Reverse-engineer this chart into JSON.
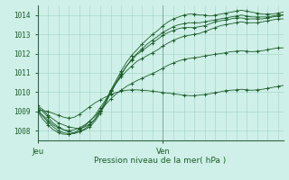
{
  "title": "",
  "xlabel": "Pression niveau de la mer( hPa )",
  "ylabel": "",
  "background_color": "#cff0e8",
  "grid_color": "#a8d8cc",
  "line_color": "#1a5c28",
  "ylim": [
    1007.5,
    1014.5
  ],
  "xlim": [
    0,
    47
  ],
  "xtick_positions": [
    0,
    24
  ],
  "xtick_labels": [
    "Jeu",
    "Ven"
  ],
  "ytick_positions": [
    1008,
    1009,
    1010,
    1011,
    1012,
    1013,
    1014
  ],
  "vline_x": 24,
  "series": [
    [
      1009.3,
      1009.1,
      1008.8,
      1008.6,
      1008.4,
      1008.3,
      1008.2,
      1008.15,
      1008.1,
      1008.2,
      1008.35,
      1008.6,
      1009.0,
      1009.5,
      1010.1,
      1010.6,
      1011.1,
      1011.55,
      1011.9,
      1012.2,
      1012.5,
      1012.75,
      1013.0,
      1013.2,
      1013.45,
      1013.65,
      1013.8,
      1013.9,
      1014.0,
      1014.05,
      1014.05,
      1014.0,
      1014.0,
      1013.95,
      1014.0,
      1014.05,
      1014.1,
      1014.15,
      1014.2,
      1014.25,
      1014.2,
      1014.15,
      1014.1,
      1014.05,
      1014.05,
      1014.05,
      1014.1,
      1014.15
    ],
    [
      1009.2,
      1009.0,
      1008.7,
      1008.4,
      1008.2,
      1008.05,
      1007.95,
      1007.9,
      1007.95,
      1008.05,
      1008.2,
      1008.5,
      1008.9,
      1009.4,
      1009.95,
      1010.45,
      1010.9,
      1011.35,
      1011.7,
      1012.0,
      1012.25,
      1012.5,
      1012.7,
      1012.9,
      1013.1,
      1013.25,
      1013.4,
      1013.5,
      1013.55,
      1013.6,
      1013.6,
      1013.6,
      1013.65,
      1013.7,
      1013.75,
      1013.8,
      1013.85,
      1013.9,
      1013.95,
      1014.0,
      1013.95,
      1013.9,
      1013.9,
      1013.9,
      1013.9,
      1013.95,
      1014.0,
      1014.0
    ],
    [
      1009.05,
      1008.75,
      1008.45,
      1008.2,
      1008.0,
      1007.9,
      1007.85,
      1007.85,
      1007.95,
      1008.1,
      1008.3,
      1008.6,
      1009.05,
      1009.5,
      1010.05,
      1010.5,
      1010.95,
      1011.35,
      1011.65,
      1011.95,
      1012.15,
      1012.35,
      1012.55,
      1012.75,
      1012.95,
      1013.1,
      1013.2,
      1013.3,
      1013.35,
      1013.35,
      1013.35,
      1013.4,
      1013.45,
      1013.55,
      1013.65,
      1013.7,
      1013.75,
      1013.8,
      1013.85,
      1013.85,
      1013.8,
      1013.8,
      1013.8,
      1013.8,
      1013.85,
      1013.9,
      1013.95,
      1014.0
    ],
    [
      1009.0,
      1008.6,
      1008.3,
      1008.05,
      1007.9,
      1007.82,
      1007.82,
      1007.9,
      1008.05,
      1008.25,
      1008.5,
      1008.8,
      1009.2,
      1009.6,
      1010.05,
      1010.45,
      1010.8,
      1011.1,
      1011.35,
      1011.6,
      1011.75,
      1011.9,
      1012.05,
      1012.2,
      1012.4,
      1012.55,
      1012.7,
      1012.8,
      1012.9,
      1012.95,
      1013.0,
      1013.05,
      1013.15,
      1013.25,
      1013.35,
      1013.45,
      1013.5,
      1013.55,
      1013.6,
      1013.65,
      1013.6,
      1013.6,
      1013.6,
      1013.65,
      1013.7,
      1013.75,
      1013.8,
      1013.8
    ],
    [
      1009.05,
      1008.8,
      1008.55,
      1008.3,
      1008.15,
      1008.05,
      1008.0,
      1008.05,
      1008.15,
      1008.3,
      1008.5,
      1008.75,
      1009.05,
      1009.35,
      1009.65,
      1009.9,
      1010.1,
      1010.3,
      1010.45,
      1010.6,
      1010.72,
      1010.85,
      1010.97,
      1011.1,
      1011.25,
      1011.4,
      1011.52,
      1011.62,
      1011.7,
      1011.75,
      1011.78,
      1011.82,
      1011.88,
      1011.92,
      1011.97,
      1012.0,
      1012.05,
      1012.1,
      1012.12,
      1012.15,
      1012.12,
      1012.1,
      1012.12,
      1012.15,
      1012.2,
      1012.25,
      1012.3,
      1012.3
    ],
    [
      1009.1,
      1009.05,
      1009.0,
      1008.9,
      1008.8,
      1008.7,
      1008.65,
      1008.7,
      1008.85,
      1009.05,
      1009.25,
      1009.45,
      1009.6,
      1009.75,
      1009.88,
      1009.98,
      1010.05,
      1010.1,
      1010.12,
      1010.12,
      1010.1,
      1010.08,
      1010.05,
      1010.02,
      1009.98,
      1009.95,
      1009.92,
      1009.88,
      1009.85,
      1009.82,
      1009.82,
      1009.85,
      1009.88,
      1009.92,
      1009.98,
      1010.02,
      1010.08,
      1010.1,
      1010.12,
      1010.15,
      1010.12,
      1010.1,
      1010.12,
      1010.15,
      1010.2,
      1010.25,
      1010.3,
      1010.35
    ]
  ]
}
